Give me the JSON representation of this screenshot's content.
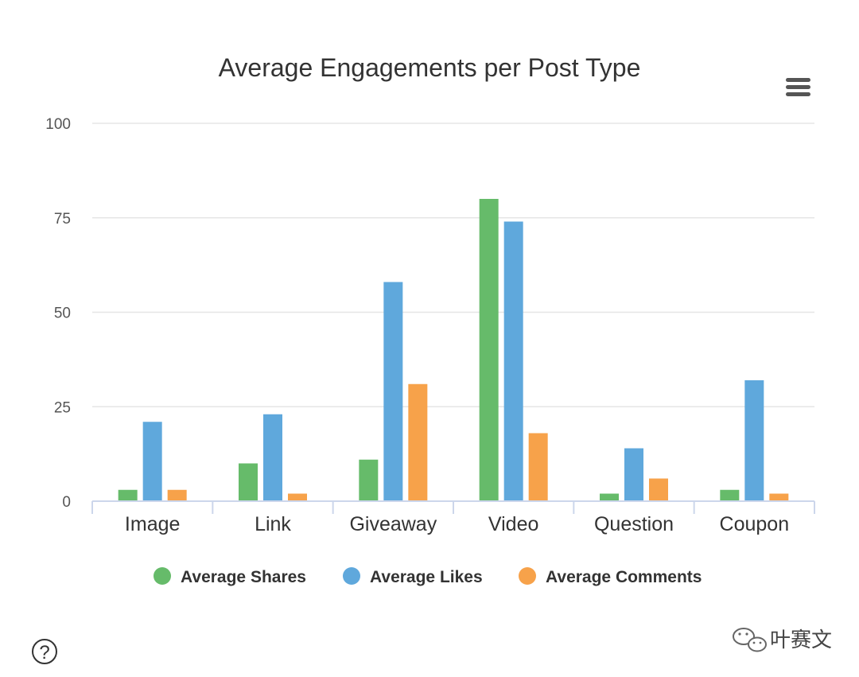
{
  "chart_data": {
    "type": "bar",
    "title": "Average Engagements per Post Type",
    "categories": [
      "Image",
      "Link",
      "Giveaway",
      "Video",
      "Question",
      "Coupon"
    ],
    "series": [
      {
        "name": "Average Shares",
        "color": "#66bb6a",
        "values": [
          3,
          10,
          11,
          80,
          2,
          3
        ]
      },
      {
        "name": "Average Likes",
        "color": "#5fa8dc",
        "values": [
          21,
          23,
          58,
          74,
          14,
          32
        ]
      },
      {
        "name": "Average Comments",
        "color": "#f7a24a",
        "values": [
          3,
          2,
          31,
          18,
          6,
          2
        ]
      }
    ],
    "yticks": [
      0,
      25,
      50,
      75,
      100
    ],
    "ylim": [
      0,
      100
    ],
    "grid": true,
    "legend_position": "bottom"
  },
  "ui": {
    "menu_icon": "hamburger-menu-icon",
    "help_icon": "question-mark-icon",
    "help_symbol": "?",
    "watermark_text": "叶赛文"
  }
}
